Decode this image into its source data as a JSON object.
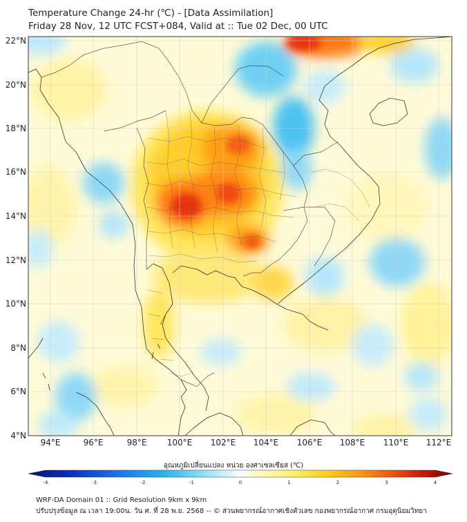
{
  "title": {
    "line1": "Temperature Change 24-hr (℃) - [Data Assimilation]",
    "line2": "Friday 28 Nov, 12 UTC FCST+084, Valid at :: Tue 02 Dec, 00 UTC"
  },
  "map": {
    "lat_labels": [
      "22°N",
      "20°N",
      "18°N",
      "16°N",
      "14°N",
      "12°N",
      "10°N",
      "8°N",
      "6°N",
      "4°N"
    ],
    "lon_labels": [
      "94°E",
      "96°E",
      "98°E",
      "100°E",
      "102°E",
      "104°E",
      "106°E",
      "108°E",
      "110°E",
      "112°E"
    ],
    "lat_range": [
      4,
      22.2
    ],
    "lon_range": [
      93,
      112.7
    ]
  },
  "colorbar": {
    "title": "อุณหภูมิเปลี่ยนแปลง หน่วย องศาเซลเซียส (℃)",
    "ticks": [
      "-4",
      "-3",
      "-2",
      "-1",
      "0",
      "1",
      "2",
      "3",
      "4"
    ],
    "min": -4,
    "max": 4
  },
  "footer": {
    "line1": "WRF-DA Domain 01 :: Grid Resolution 9km x 9km",
    "line2": "ปรับปรุงข้อมูล ณ เวลา 19:00น. วัน ศ. ที่ 28 พ.ย. 2568 -- © ส่วนพยากรณ์อากาศเชิงตัวเลข กองพยากรณ์อากาศ กรมอุตุนิยมวิทยา"
  }
}
